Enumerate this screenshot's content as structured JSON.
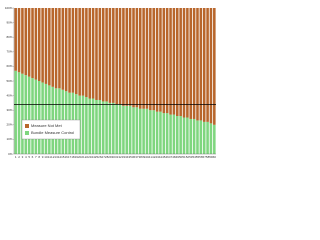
{
  "chart_data": {
    "type": "stacked_bar",
    "categories": [
      "1",
      "2",
      "3",
      "4",
      "5",
      "6",
      "7",
      "8",
      "9",
      "10",
      "11",
      "12",
      "13",
      "14",
      "15",
      "16",
      "17",
      "18",
      "19",
      "20",
      "21",
      "22",
      "23",
      "24",
      "25",
      "26",
      "27",
      "28",
      "29",
      "30",
      "31",
      "32",
      "33",
      "34",
      "35",
      "36",
      "37",
      "38",
      "39",
      "40",
      "41",
      "42",
      "43",
      "44",
      "45",
      "46",
      "47",
      "48",
      "49",
      "50",
      "51",
      "52",
      "53",
      "54",
      "55",
      "56",
      "57",
      "58",
      "59",
      "60"
    ],
    "series": [
      {
        "name": "Bundle Measure Control",
        "color": "#7fd67f",
        "values": [
          57,
          56,
          55,
          54,
          53,
          52,
          51,
          50,
          49,
          48,
          47,
          46,
          45,
          45,
          44,
          43,
          42,
          42,
          41,
          40,
          40,
          39,
          38,
          38,
          37,
          37,
          36,
          36,
          35,
          35,
          34,
          34,
          33,
          33,
          33,
          32,
          32,
          31,
          31,
          31,
          30,
          30,
          29,
          29,
          28,
          28,
          27,
          27,
          26,
          26,
          25,
          25,
          24,
          24,
          23,
          23,
          22,
          22,
          21,
          20
        ]
      },
      {
        "name": "Measure Not Met",
        "color": "#b8662c",
        "values": [
          43,
          44,
          45,
          46,
          47,
          48,
          49,
          50,
          51,
          52,
          53,
          54,
          55,
          55,
          56,
          57,
          58,
          58,
          59,
          60,
          60,
          61,
          62,
          62,
          63,
          63,
          64,
          64,
          65,
          65,
          66,
          66,
          67,
          67,
          67,
          68,
          68,
          69,
          69,
          69,
          70,
          70,
          71,
          71,
          72,
          72,
          73,
          73,
          74,
          74,
          75,
          75,
          76,
          76,
          77,
          77,
          78,
          78,
          79,
          80
        ]
      }
    ],
    "reference_line": 34,
    "ylim": [
      0,
      100
    ],
    "yticks": [
      {
        "value": 0,
        "label": "0%"
      },
      {
        "value": 10,
        "label": "10%"
      },
      {
        "value": 20,
        "label": "20%"
      },
      {
        "value": 30,
        "label": "30%"
      },
      {
        "value": 40,
        "label": "40%"
      },
      {
        "value": 50,
        "label": "50%"
      },
      {
        "value": 60,
        "label": "60%"
      },
      {
        "value": 70,
        "label": "70%"
      },
      {
        "value": 80,
        "label": "80%"
      },
      {
        "value": 90,
        "label": "90%"
      },
      {
        "value": 100,
        "label": "100%"
      }
    ]
  }
}
